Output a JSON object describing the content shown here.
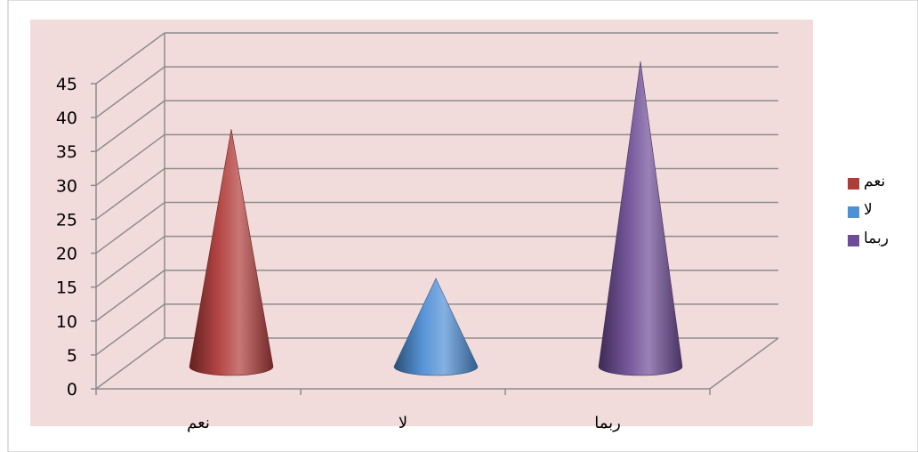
{
  "chart_data": {
    "type": "bar",
    "style": "3d-cone",
    "categories": [
      "نعم",
      "لا",
      "ربما"
    ],
    "values": [
      35,
      13,
      45
    ],
    "colors": [
      "#b03c3a",
      "#4f8fd6",
      "#6e4d96"
    ],
    "ylim": [
      0,
      45
    ],
    "yticks": [
      0,
      5,
      10,
      15,
      20,
      25,
      30,
      35,
      40,
      45
    ],
    "grid": true,
    "legend_position": "right",
    "legend": [
      "نعم",
      "لا",
      "ربما"
    ],
    "plot_background": "#f2dcdb"
  }
}
